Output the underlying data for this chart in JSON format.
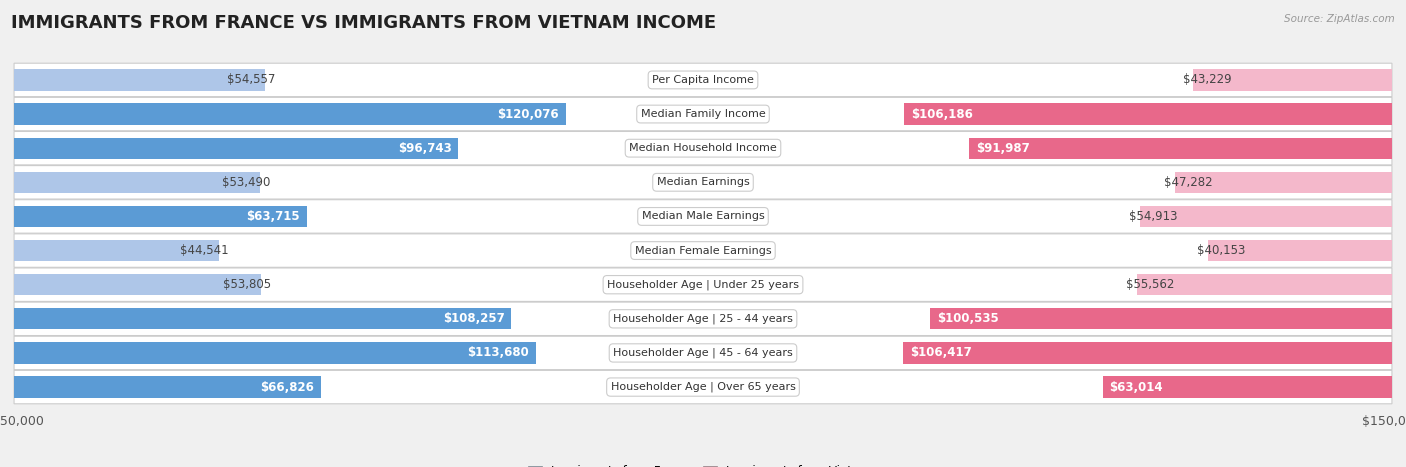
{
  "title": "IMMIGRANTS FROM FRANCE VS IMMIGRANTS FROM VIETNAM INCOME",
  "source": "Source: ZipAtlas.com",
  "categories": [
    "Per Capita Income",
    "Median Family Income",
    "Median Household Income",
    "Median Earnings",
    "Median Male Earnings",
    "Median Female Earnings",
    "Householder Age | Under 25 years",
    "Householder Age | 25 - 44 years",
    "Householder Age | 45 - 64 years",
    "Householder Age | Over 65 years"
  ],
  "france_values": [
    54557,
    120076,
    96743,
    53490,
    63715,
    44541,
    53805,
    108257,
    113680,
    66826
  ],
  "vietnam_values": [
    43229,
    106186,
    91987,
    47282,
    54913,
    40153,
    55562,
    100535,
    106417,
    63014
  ],
  "france_labels": [
    "$54,557",
    "$120,076",
    "$96,743",
    "$53,490",
    "$63,715",
    "$44,541",
    "$53,805",
    "$108,257",
    "$113,680",
    "$66,826"
  ],
  "vietnam_labels": [
    "$43,229",
    "$106,186",
    "$91,987",
    "$47,282",
    "$54,913",
    "$40,153",
    "$55,562",
    "$100,535",
    "$106,417",
    "$63,014"
  ],
  "france_color_light": "#aec6e8",
  "france_color_dark": "#5b9bd5",
  "vietnam_color_light": "#f4b8cb",
  "vietnam_color_dark": "#e8688a",
  "max_value": 150000,
  "legend_france": "Immigrants from France",
  "legend_vietnam": "Immigrants from Vietnam",
  "background_color": "#f0f0f0",
  "title_fontsize": 13,
  "label_fontsize": 8.5,
  "tick_fontsize": 9,
  "threshold": 60000
}
